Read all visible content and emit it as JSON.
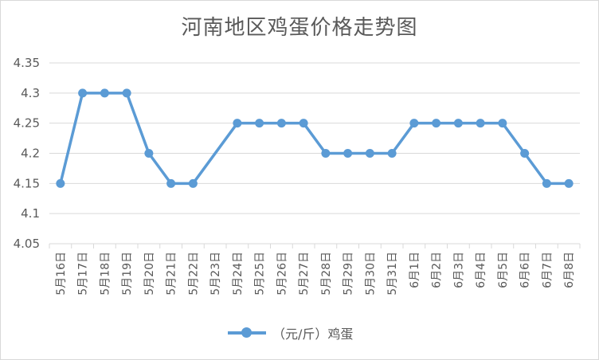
{
  "chart_data": {
    "type": "line",
    "title": "河南地区鸡蛋价格走势图",
    "categories": [
      "5月16日",
      "5月17日",
      "5月18日",
      "5月19日",
      "5月20日",
      "5月21日",
      "5月22日",
      "5月23日",
      "5月24日",
      "5月25日",
      "5月26日",
      "5月27日",
      "5月28日",
      "5月29日",
      "5月30日",
      "5月31日",
      "6月1日",
      "6月2日",
      "6月3日",
      "6月4日",
      "6月5日",
      "6月6日",
      "6月7日",
      "6月8日"
    ],
    "series": [
      {
        "name": "（元/斤）鸡蛋",
        "values": [
          4.15,
          4.3,
          4.3,
          4.3,
          4.2,
          4.15,
          4.15,
          null,
          4.25,
          4.25,
          4.25,
          4.25,
          4.2,
          4.2,
          4.2,
          4.2,
          4.25,
          4.25,
          4.25,
          4.25,
          4.25,
          4.2,
          4.15,
          4.15
        ],
        "color": "#5b9bd5"
      }
    ],
    "y_ticks": [
      "4.05",
      "4.1",
      "4.15",
      "4.2",
      "4.25",
      "4.3",
      "4.35"
    ],
    "ylim": [
      4.05,
      4.35
    ],
    "grid": true,
    "legend_position": "bottom"
  }
}
